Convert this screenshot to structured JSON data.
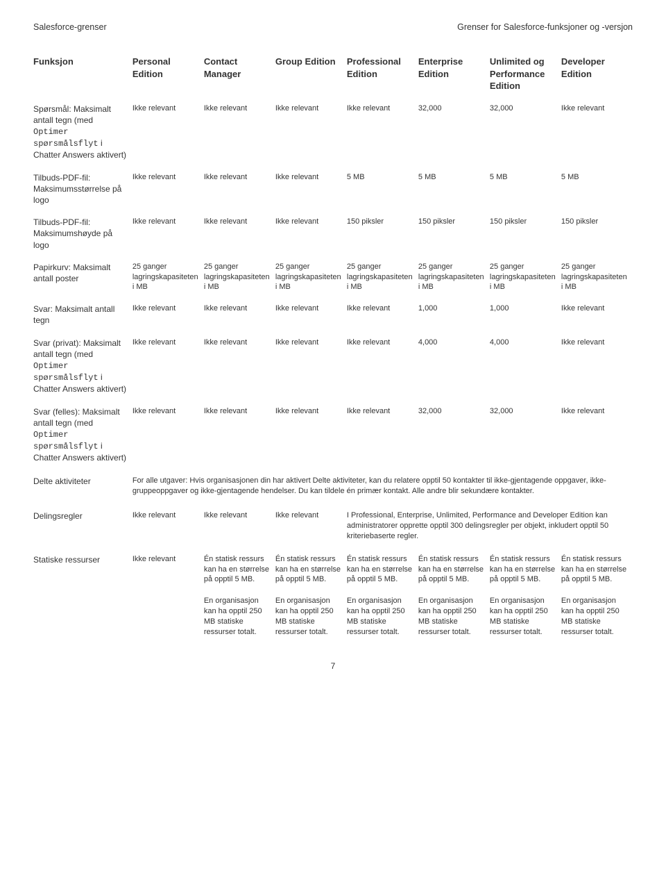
{
  "runhead": {
    "left": "Salesforce-grenser",
    "right": "Grenser for Salesforce-funksjoner og -versjon"
  },
  "columns": {
    "feature": "Funksjon",
    "c1": "Personal Edition",
    "c2": "Contact Manager",
    "c3": "Group Edition",
    "c4": "Professional Edition",
    "c5": "Enterprise Edition",
    "c6": "Unlimited og Performance Edition",
    "c7": "Developer Edition"
  },
  "cell": {
    "irrelevant": "Ikke relevant",
    "storage": "25 ganger lagringskapasiteten i MB",
    "static1": "Én statisk ressurs kan ha en størrelse på opptil 5 MB.",
    "static2": "En organisasjon kan ha opptil 250 MB statiske ressurser totalt.",
    "p150": "150 piksler",
    "mb5": "5 MB"
  },
  "rows": {
    "r1": {
      "feature": "Spørsmål: Maksimalt antall tegn (med ",
      "feature_code": "Optimer spørsmålsflyt",
      "feature_tail": " i Chatter Answers aktivert)",
      "v5": "32,000",
      "v6": "32,000"
    },
    "r2": {
      "feature": "Tilbuds-PDF-fil: Maksimumsstørrelse på logo"
    },
    "r3": {
      "feature": "Tilbuds-PDF-fil: Maksimumshøyde på logo"
    },
    "r4": {
      "feature": "Papirkurv: Maksimalt antall poster"
    },
    "r5": {
      "feature": "Svar: Maksimalt antall tegn",
      "v5": "1,000",
      "v6": "1,000"
    },
    "r6": {
      "feature": "Svar (privat): Maksimalt antall tegn (med ",
      "feature_code": "Optimer spørsmålsflyt",
      "feature_tail": " i Chatter Answers aktivert)",
      "v5": "4,000",
      "v6": "4,000"
    },
    "r7": {
      "feature": "Svar (felles): Maksimalt antall tegn (med ",
      "feature_code": "Optimer spørsmålsflyt",
      "feature_tail": " i Chatter Answers aktivert)",
      "v5": "32,000",
      "v6": "32,000"
    },
    "r8": {
      "feature": "Delte aktiviteter",
      "text": "For alle utgaver: Hvis organisasjonen din har aktivert Delte aktiviteter, kan du relatere opptil 50 kontakter til ikke-gjentagende oppgaver, ikke-gruppeoppgaver og ikke-gjentagende hendelser. Du kan tildele én primær kontakt. Alle andre blir sekundære kontakter."
    },
    "r9": {
      "feature": "Delingsregler",
      "text": "I Professional, Enterprise, Unlimited, Performance and Developer Edition kan administratorer opprette opptil 300 delingsregler per objekt, inkludert opptil 50 kriteriebaserte regler."
    },
    "r10": {
      "feature": "Statiske ressurser"
    }
  },
  "pagenum": "7"
}
